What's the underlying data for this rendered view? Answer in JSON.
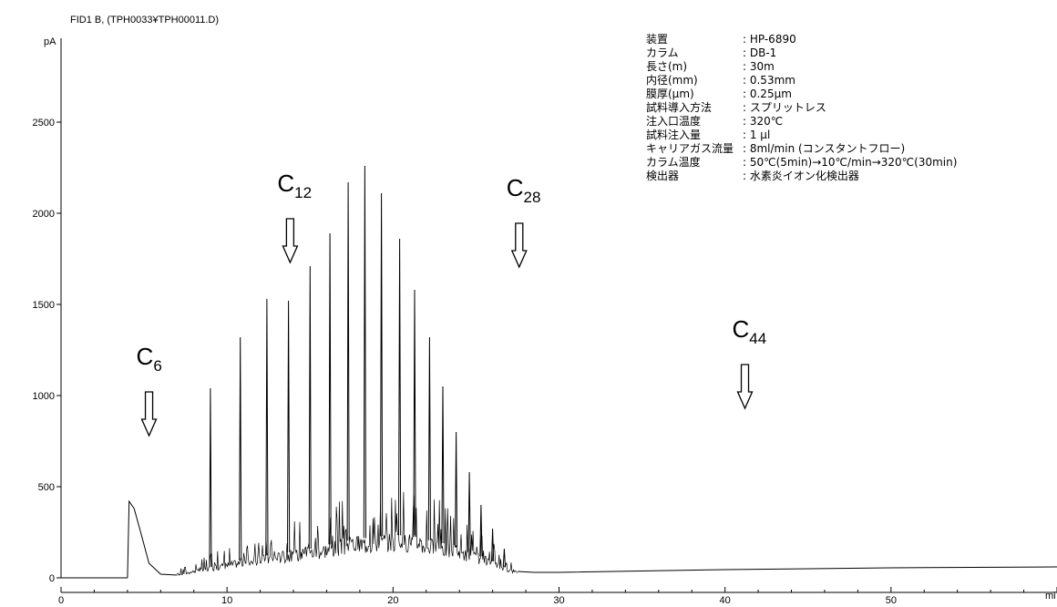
{
  "chart_data": {
    "type": "line",
    "title": "FID1 B, (TPH0033¥TPH00011.D)",
    "ylabel": "pA",
    "xlabel": "mi",
    "xlim": [
      0,
      60
    ],
    "ylim": [
      0,
      2750
    ],
    "x_ticks": [
      0,
      10,
      20,
      30,
      40,
      50
    ],
    "y_ticks": [
      0,
      500,
      1000,
      1500,
      2000,
      2500
    ],
    "baseline_segments": [
      {
        "x": [
          0,
          4.0
        ],
        "y": [
          0,
          0
        ]
      },
      {
        "x": [
          4.0,
          4.1,
          4.4,
          4.8,
          5.3,
          6.0,
          7.0
        ],
        "y": [
          0,
          420,
          380,
          250,
          80,
          20,
          15
        ]
      },
      {
        "x": [
          27.5,
          28.5,
          30,
          40,
          50,
          60
        ],
        "y": [
          35,
          30,
          30,
          45,
          55,
          60
        ]
      }
    ],
    "envelope": {
      "x": [
        7,
        8,
        9,
        10,
        11,
        12,
        13,
        14,
        15,
        16,
        17,
        18,
        19,
        20,
        21,
        22,
        23,
        24,
        25,
        26,
        27,
        27.5
      ],
      "y": [
        20,
        40,
        60,
        80,
        100,
        115,
        130,
        145,
        160,
        180,
        200,
        215,
        225,
        235,
        230,
        210,
        190,
        160,
        130,
        90,
        50,
        35
      ]
    },
    "major_peaks": {
      "x": [
        9.0,
        10.8,
        12.4,
        13.7,
        15.0,
        16.2,
        17.3,
        18.3,
        19.3,
        20.4,
        21.3,
        22.2,
        23.0,
        23.8,
        24.6,
        25.3,
        26.0,
        26.7
      ],
      "y": [
        1040,
        1320,
        1530,
        1520,
        1710,
        1890,
        2170,
        2260,
        2110,
        1860,
        1580,
        1320,
        1050,
        800,
        580,
        400,
        270,
        160
      ]
    },
    "annotations": [
      {
        "main": "C",
        "sub": "6",
        "x": 5.3
      },
      {
        "main": "C",
        "sub": "12",
        "x": 13.8
      },
      {
        "main": "C",
        "sub": "28",
        "x": 27.6
      },
      {
        "main": "C",
        "sub": "44",
        "x": 41.2
      }
    ],
    "info_table": [
      {
        "label": "装置",
        "value": ": HP-6890"
      },
      {
        "label": "カラム",
        "value": ": DB-1"
      },
      {
        "label": "長さ(m)",
        "value": ": 30m"
      },
      {
        "label": "内径(mm)",
        "value": ": 0.53mm"
      },
      {
        "label": "膜厚(μm)",
        "value": ": 0.25μm"
      },
      {
        "label": "試料導入方法",
        "value": ": スプリットレス"
      },
      {
        "label": "注入口温度",
        "value": ": 320℃"
      },
      {
        "label": "試料注入量",
        "value": ": 1 μl"
      },
      {
        "label": "キャリアガス流量",
        "value": ": 8ml/min (コンスタントフロー)"
      },
      {
        "label": "カラム温度",
        "value": ": 50℃(5min)→10℃/min→320℃(30min)"
      },
      {
        "label": "検出器",
        "value": ": 水素炎イオン化検出器"
      }
    ]
  }
}
